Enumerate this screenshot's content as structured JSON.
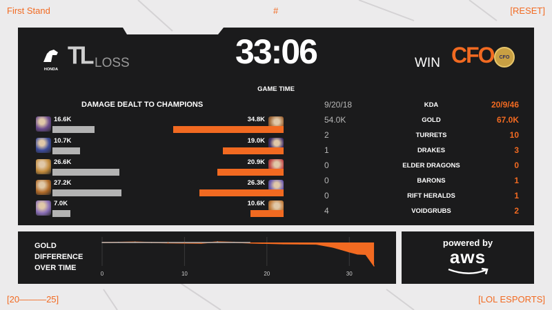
{
  "corners": {
    "top_left": "First Stand",
    "top_center": "#",
    "top_right": "[RESET]",
    "bottom_left": "[20———25]",
    "bottom_right": "[LOL ESPORTS]"
  },
  "match": {
    "time": "33:06",
    "time_label": "GAME TIME",
    "left_team": {
      "tag": "TL",
      "sponsor": "HONDA",
      "result": "LOSS"
    },
    "right_team": {
      "tag": "CFO",
      "logo_text": "CFO",
      "result": "WIN"
    }
  },
  "damage": {
    "title": "DAMAGE DEALT TO CHAMPIONS",
    "left": [
      {
        "value": "16.6K",
        "fraction": 0.48
      },
      {
        "value": "10.7K",
        "fraction": 0.31
      },
      {
        "value": "26.6K",
        "fraction": 0.76
      },
      {
        "value": "27.2K",
        "fraction": 0.78
      },
      {
        "value": "7.0K",
        "fraction": 0.2
      }
    ],
    "right": [
      {
        "value": "34.8K",
        "fraction": 1.0
      },
      {
        "value": "19.0K",
        "fraction": 0.55
      },
      {
        "value": "20.9K",
        "fraction": 0.6
      },
      {
        "value": "26.3K",
        "fraction": 0.76
      },
      {
        "value": "10.6K",
        "fraction": 0.3
      }
    ]
  },
  "stats": [
    {
      "left": "9/20/18",
      "label": "KDA",
      "right": "20/9/46"
    },
    {
      "left": "54.0K",
      "label": "GOLD",
      "right": "67.0K"
    },
    {
      "left": "2",
      "label": "TURRETS",
      "right": "10"
    },
    {
      "left": "1",
      "label": "DRAKES",
      "right": "3"
    },
    {
      "left": "0",
      "label": "ELDER DRAGONS",
      "right": "0"
    },
    {
      "left": "0",
      "label": "BARONS",
      "right": "1"
    },
    {
      "left": "0",
      "label": "RIFT HERALDS",
      "right": "1"
    },
    {
      "left": "4",
      "label": "VOIDGRUBS",
      "right": "2"
    }
  ],
  "gold_graph": {
    "label_lines": [
      "GOLD",
      "DIFFERENCE",
      "OVER TIME"
    ],
    "x_ticks": [
      "0",
      "10",
      "20",
      "30"
    ]
  },
  "chart_data": {
    "type": "area",
    "x": [
      0,
      2,
      4,
      6,
      8,
      10,
      12,
      14,
      16,
      18,
      20,
      22,
      24,
      26,
      28,
      29,
      30,
      31,
      32,
      33
    ],
    "series": [
      {
        "values": [
          0,
          100,
          200,
          0,
          -200,
          -300,
          -400,
          300,
          100,
          -300,
          -500,
          -700,
          -800,
          -900,
          -2600,
          -3900,
          -5200,
          -6400,
          -6600,
          -13000
        ]
      }
    ],
    "xlabel": "",
    "ylabel": "",
    "x_ticks": [
      0,
      10,
      20,
      30
    ],
    "colors": {
      "positive": "#b3b3b3",
      "negative": "#f26a21"
    }
  },
  "sponsor": {
    "line1": "powered by",
    "line2": "aws"
  },
  "colors": {
    "accent": "#f26a21",
    "panel": "#1b1b1c",
    "background": "#ecebec"
  },
  "avatars": {
    "left": [
      "#6a4a8c",
      "#3b4a9a",
      "#c28a3a",
      "#b06a28",
      "#8a6fb8"
    ],
    "right": [
      "#a06838",
      "#3e2f6a",
      "#c04848",
      "#6a5ab0",
      "#c07a3a"
    ]
  }
}
